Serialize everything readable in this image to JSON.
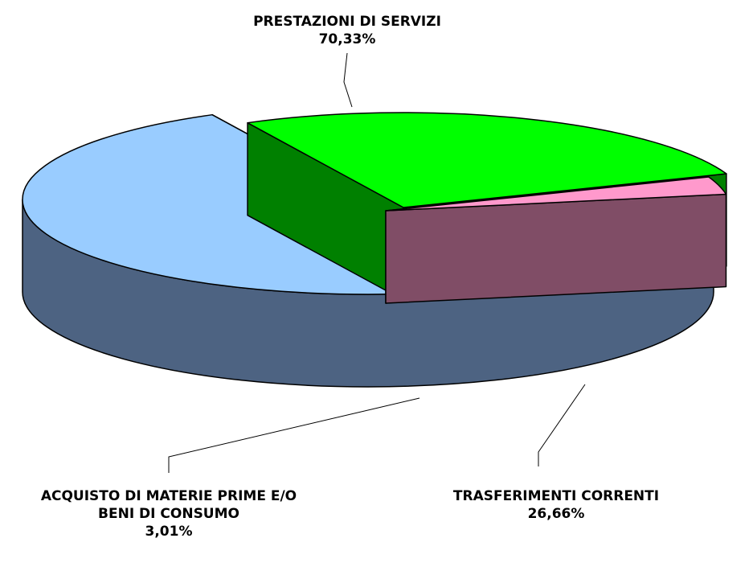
{
  "chart_data": {
    "type": "pie3d",
    "categories": [
      "PRESTAZIONI DI SERVIZI",
      "TRASFERIMENTI CORRENTI",
      "ACQUISTO DI MATERIE PRIME E/O BENI DI CONSUMO"
    ],
    "values": [
      70.33,
      26.66,
      3.01
    ],
    "value_labels": [
      "70,33%",
      "26,66%",
      "3,01%"
    ],
    "colors": [
      "#99ccff",
      "#00ff00",
      "#ff99cc"
    ],
    "side_colors": [
      "#4d6382",
      "#008000",
      "#804d66"
    ]
  }
}
